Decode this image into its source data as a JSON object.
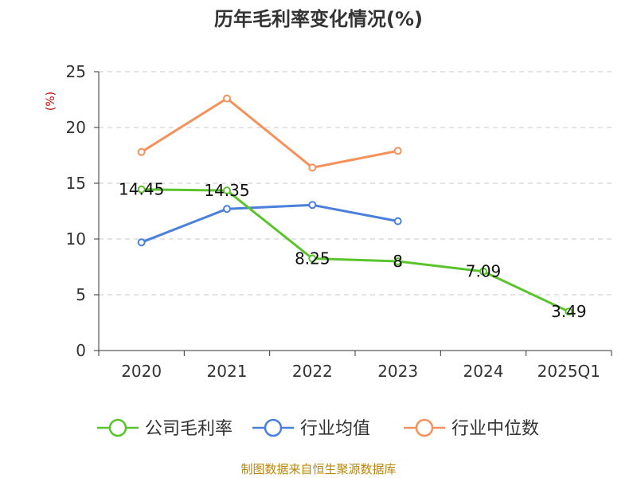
{
  "chart_data": {
    "type": "line",
    "title": "历年毛利率变化情况(%)",
    "ylabel": "(%)",
    "xlabel": "",
    "categories": [
      "2020",
      "2021",
      "2022",
      "2023",
      "2024",
      "2025Q1"
    ],
    "ylim": [
      0,
      25
    ],
    "yticks": [
      0,
      5,
      10,
      15,
      20,
      25
    ],
    "grid": true,
    "legend_position": "bottom",
    "series": [
      {
        "name": "公司毛利率",
        "color": "#5bc42d",
        "values": [
          14.45,
          14.35,
          8.25,
          8,
          7.09,
          3.49
        ],
        "data_labels": [
          "14.45",
          "14.35",
          "8.25",
          "8",
          "7.09",
          "3.49"
        ]
      },
      {
        "name": "行业均值",
        "color": "#4a7fdc",
        "values": [
          9.7,
          12.7,
          13.05,
          11.6,
          null,
          null
        ]
      },
      {
        "name": "行业中位数",
        "color": "#f5915a",
        "values": [
          17.8,
          22.6,
          16.4,
          17.9,
          null,
          null
        ]
      }
    ],
    "source": "制图数据来自恒生聚源数据库"
  }
}
